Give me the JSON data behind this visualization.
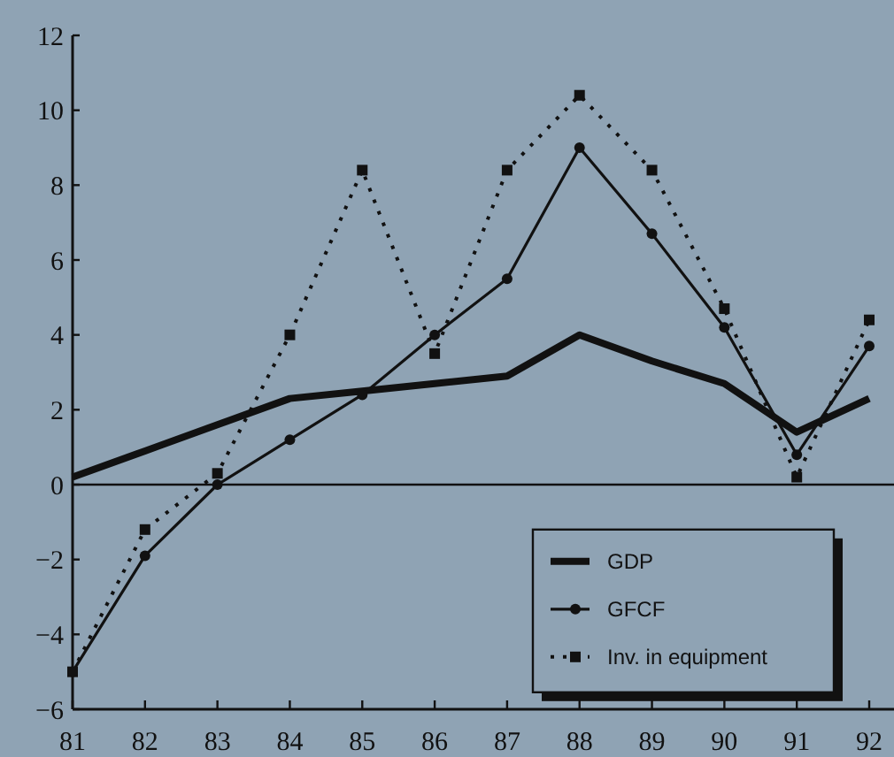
{
  "chart_data": {
    "type": "line",
    "categories": [
      "81",
      "82",
      "83",
      "84",
      "85",
      "86",
      "87",
      "88",
      "89",
      "90",
      "91",
      "92"
    ],
    "series": [
      {
        "name": "GDP",
        "color": "#111111",
        "values": [
          0.2,
          0.9,
          1.6,
          2.3,
          2.5,
          2.7,
          2.9,
          4.0,
          3.3,
          2.7,
          1.4,
          2.3
        ],
        "marker": "none",
        "line_style": "solid"
      },
      {
        "name": "GFCF",
        "color": "#111111",
        "values": [
          -5.0,
          -1.9,
          0,
          1.2,
          2.4,
          4.0,
          5.5,
          9.0,
          6.7,
          4.2,
          0.8,
          3.7
        ],
        "marker": "circle",
        "line_style": "solid"
      },
      {
        "name": "Inv. in equipment",
        "color": "#111111",
        "values": [
          -5.0,
          -1.2,
          0.3,
          4.0,
          8.4,
          3.5,
          8.4,
          10.4,
          8.4,
          4.7,
          0.2,
          4.4
        ],
        "marker": "square",
        "line_style": "dotted"
      }
    ],
    "ylim": [
      -6,
      12
    ],
    "yticks": [
      -6,
      -4,
      -2,
      0,
      2,
      4,
      6,
      8,
      10,
      12
    ],
    "ref_lines": [
      {
        "axis": "y",
        "value": 0,
        "color": "#111111"
      }
    ],
    "grid": false,
    "legend": "bottom right"
  }
}
